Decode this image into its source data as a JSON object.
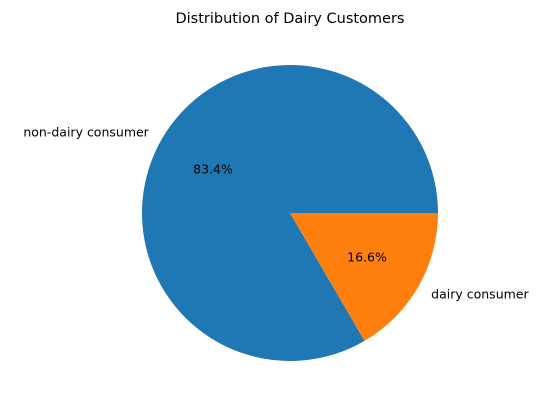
{
  "chart_data": {
    "type": "pie",
    "title": "Distribution of Dairy Customers",
    "slices": [
      {
        "label": "non-dairy consumer",
        "value": 83.4,
        "pct_label": "83.4%",
        "color": "#1f77b4"
      },
      {
        "label": "dairy consumer",
        "value": 16.6,
        "pct_label": "16.6%",
        "color": "#ff7f0e"
      }
    ],
    "start_angle": "0 degrees (3 o'clock)",
    "direction": "counterclockwise",
    "legend": "none"
  }
}
